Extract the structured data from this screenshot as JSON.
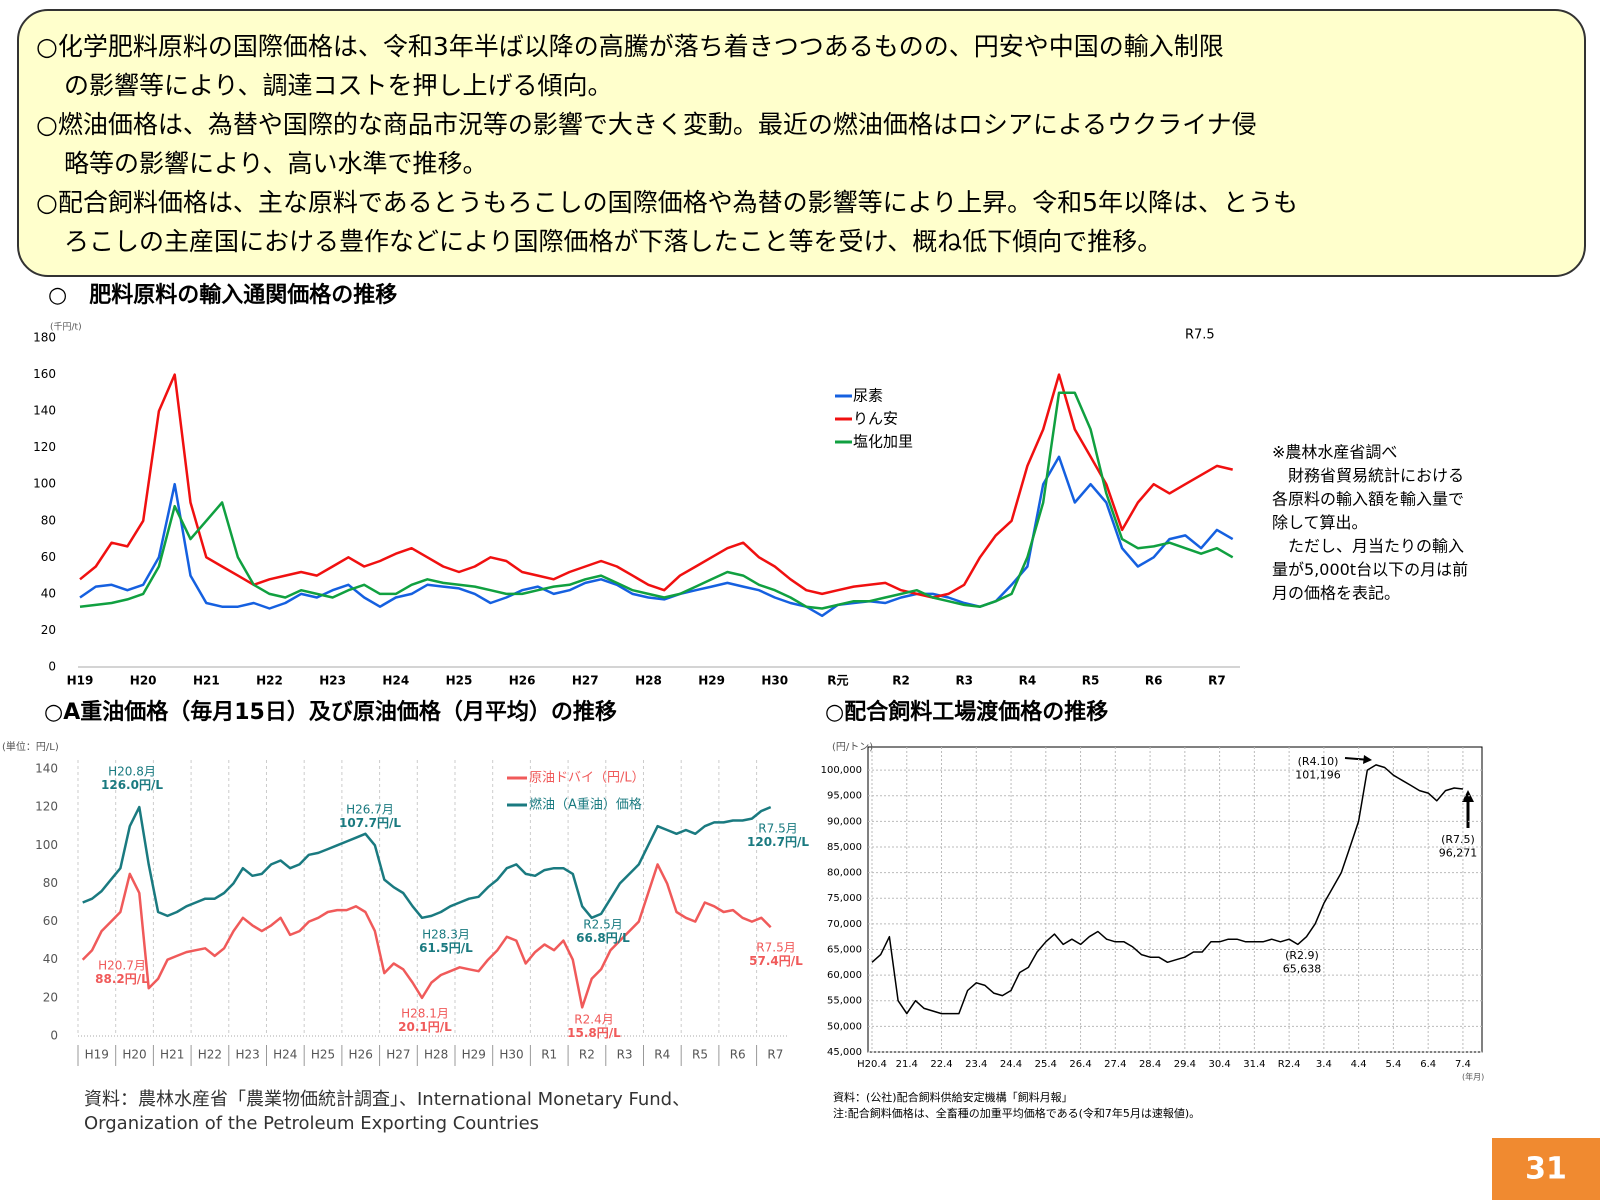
{
  "summary": [
    [
      "○化学肥料原料の国際価格は、令和3年半ば以降の高騰が落ち着きつつあるものの、円安や中国の輸入制限",
      "の影響等により、調達コストを押し上げる傾向。"
    ],
    [
      "○燃油価格は、為替や国際的な商品市況等の影響で大きく変動。最近の燃油価格はロシアによるウクライナ侵",
      "略等の影響により、高い水準で推移。"
    ],
    [
      "○配合飼料価格は、主な原料であるとうもろこしの国際価格や為替の影響等により上昇。令和5年以降は、とうも",
      "ろこしの主産国における豊作などにより国際価格が下落したこと等を受け、概ね低下傾向で推移。"
    ]
  ],
  "page_number": "31",
  "chart_data": [
    {
      "type": "line",
      "title": "○　肥料原料の輸入通関価格の推移",
      "y_unit": "(千円/t)",
      "annotation": "R7.5",
      "note": [
        "※農林水産省調べ",
        "　財務省貿易統計における",
        "各原料の輸入額を輸入量で",
        "除して算出。",
        "　ただし、月当たりの輸入",
        "量が5,000t台以下の月は前",
        "月の価格を表記。"
      ],
      "ylim": [
        0,
        180
      ],
      "yticks": [
        0,
        20,
        40,
        60,
        80,
        100,
        120,
        140,
        160,
        180
      ],
      "grid": false,
      "categories": [
        "H19",
        null,
        null,
        null,
        "H20",
        null,
        null,
        null,
        "H21",
        null,
        null,
        null,
        "H22",
        null,
        null,
        null,
        "H23",
        null,
        null,
        null,
        "H24",
        null,
        null,
        null,
        "H25",
        null,
        null,
        null,
        "H26",
        null,
        null,
        null,
        "H27",
        null,
        null,
        null,
        "H28",
        null,
        null,
        null,
        "H29",
        null,
        null,
        null,
        "H30",
        null,
        null,
        null,
        "R元",
        null,
        null,
        null,
        "R2",
        null,
        null,
        null,
        "R3",
        null,
        null,
        null,
        "R4",
        null,
        null,
        null,
        "R5",
        null,
        null,
        null,
        "R6",
        null,
        null,
        null,
        "R7",
        null
      ],
      "series": [
        {
          "name": "尿素",
          "color": "#1560e0",
          "values": [
            38,
            44,
            45,
            42,
            45,
            60,
            100,
            50,
            35,
            33,
            33,
            35,
            32,
            35,
            40,
            38,
            42,
            45,
            38,
            33,
            38,
            40,
            45,
            44,
            43,
            40,
            35,
            38,
            42,
            44,
            40,
            42,
            46,
            48,
            45,
            40,
            38,
            37,
            40,
            42,
            44,
            46,
            44,
            42,
            38,
            35,
            33,
            28,
            34,
            35,
            36,
            35,
            38,
            40,
            40,
            38,
            35,
            33,
            36,
            45,
            55,
            100,
            115,
            90,
            100,
            90,
            65,
            55,
            60,
            70,
            72,
            65,
            75,
            70
          ]
        },
        {
          "name": "りん安",
          "color": "#f01010",
          "values": [
            48,
            55,
            68,
            66,
            80,
            140,
            160,
            90,
            60,
            55,
            50,
            45,
            48,
            50,
            52,
            50,
            55,
            60,
            55,
            58,
            62,
            65,
            60,
            55,
            52,
            55,
            60,
            58,
            52,
            50,
            48,
            52,
            55,
            58,
            55,
            50,
            45,
            42,
            50,
            55,
            60,
            65,
            68,
            60,
            55,
            48,
            42,
            40,
            42,
            44,
            45,
            46,
            42,
            40,
            38,
            40,
            45,
            60,
            72,
            80,
            110,
            130,
            160,
            130,
            115,
            100,
            75,
            90,
            100,
            95,
            100,
            105,
            110,
            108
          ]
        },
        {
          "name": "塩化加里",
          "color": "#10a040",
          "values": [
            33,
            34,
            35,
            37,
            40,
            55,
            88,
            70,
            80,
            90,
            60,
            45,
            40,
            38,
            42,
            40,
            38,
            42,
            45,
            40,
            40,
            45,
            48,
            46,
            45,
            44,
            42,
            40,
            40,
            42,
            44,
            45,
            48,
            50,
            46,
            42,
            40,
            38,
            40,
            44,
            48,
            52,
            50,
            45,
            42,
            38,
            33,
            32,
            34,
            36,
            36,
            38,
            40,
            42,
            38,
            36,
            34,
            33,
            36,
            40,
            60,
            90,
            150,
            150,
            130,
            95,
            70,
            65,
            66,
            68,
            65,
            62,
            65,
            60
          ]
        }
      ]
    },
    {
      "type": "line",
      "title": "○A重油価格（毎月15日）及び原油価格（月平均）の推移",
      "y_unit": "(単位：円/L)",
      "source": [
        "資料：農林水産省「農業物価統計調査」、International Monetary Fund、",
        "Organization of the Petroleum Exporting Countries"
      ],
      "ylim": [
        0,
        140
      ],
      "yticks": [
        0,
        20,
        40,
        60,
        80,
        100,
        120,
        140
      ],
      "grid": true,
      "categories": [
        "H19",
        null,
        null,
        null,
        "H20",
        null,
        null,
        null,
        "H21",
        null,
        null,
        null,
        "H22",
        null,
        null,
        null,
        "H23",
        null,
        null,
        null,
        "H24",
        null,
        null,
        null,
        "H25",
        null,
        null,
        null,
        "H26",
        null,
        null,
        null,
        "H27",
        null,
        null,
        null,
        "H28",
        null,
        null,
        null,
        "H29",
        null,
        null,
        null,
        "H30",
        null,
        null,
        null,
        "R1",
        null,
        null,
        null,
        "R2",
        null,
        null,
        null,
        "R3",
        null,
        null,
        null,
        "R4",
        null,
        null,
        null,
        "R5",
        null,
        null,
        null,
        "R6",
        null,
        null,
        null,
        "R7",
        null
      ],
      "series": [
        {
          "name": "原油ドバイ（円/L）",
          "color": "#f05a5a",
          "values": [
            40,
            45,
            55,
            60,
            65,
            85,
            75,
            25,
            30,
            40,
            42,
            44,
            45,
            46,
            42,
            46,
            55,
            62,
            58,
            55,
            58,
            62,
            53,
            55,
            60,
            62,
            65,
            66,
            66,
            68,
            65,
            55,
            33,
            38,
            35,
            28,
            20,
            28,
            32,
            34,
            36,
            35,
            34,
            40,
            45,
            52,
            50,
            38,
            44,
            48,
            45,
            50,
            40,
            15,
            30,
            35,
            45,
            50,
            55,
            60,
            75,
            90,
            80,
            65,
            62,
            60,
            70,
            68,
            65,
            66,
            62,
            60,
            62,
            57
          ]
        },
        {
          "name": "燃油（A重油）価格",
          "color": "#1a7a80",
          "values": [
            70,
            72,
            76,
            82,
            88,
            110,
            120,
            90,
            65,
            63,
            65,
            68,
            70,
            72,
            72,
            75,
            80,
            88,
            84,
            85,
            90,
            92,
            88,
            90,
            95,
            96,
            98,
            100,
            102,
            104,
            106,
            100,
            82,
            78,
            75,
            68,
            62,
            63,
            65,
            68,
            70,
            72,
            73,
            78,
            82,
            88,
            90,
            85,
            84,
            87,
            88,
            88,
            85,
            68,
            62,
            64,
            72,
            80,
            85,
            90,
            100,
            110,
            108,
            106,
            108,
            106,
            110,
            112,
            112,
            113,
            113,
            114,
            118,
            120
          ]
        }
      ],
      "annotations": [
        {
          "lines": [
            "H20.8月",
            "126.0円/L"
          ],
          "series": 1
        },
        {
          "lines": [
            "H20.7月",
            "88.2円/L"
          ],
          "series": 0
        },
        {
          "lines": [
            "H26.7月",
            "107.7円/L"
          ],
          "series": 1
        },
        {
          "lines": [
            "H28.3月",
            "61.5円/L"
          ],
          "series": 1
        },
        {
          "lines": [
            "H28.1月",
            "20.1円/L"
          ],
          "series": 0
        },
        {
          "lines": [
            "R2.5月",
            "66.8円/L"
          ],
          "series": 1
        },
        {
          "lines": [
            "R2.4月",
            "15.8円/L"
          ],
          "series": 0
        },
        {
          "lines": [
            "R7.5月",
            "120.7円/L"
          ],
          "series": 1
        },
        {
          "lines": [
            "R7.5月",
            "57.4円/L"
          ],
          "series": 0
        }
      ]
    },
    {
      "type": "line",
      "title": "○配合飼料工場渡価格の推移",
      "y_unit": "(円/トン)",
      "x_unit": "(年月)",
      "source": [
        "資料：(公社)配合飼料供給安定機構「飼料月報」",
        "注:配合飼料価格は、全畜種の加重平均価格である(令和7年5月は速報値)。"
      ],
      "ylim": [
        45000,
        104500
      ],
      "yticks": [
        {
          "value": 45000,
          "label": "45,000"
        },
        {
          "value": 50000,
          "label": "50,000"
        },
        {
          "value": 55000,
          "label": "55,000"
        },
        {
          "value": 60000,
          "label": "60,000"
        },
        {
          "value": 65000,
          "label": "65,000"
        },
        {
          "value": 70000,
          "label": "70,000"
        },
        {
          "value": 75000,
          "label": "75,000"
        },
        {
          "value": 80000,
          "label": "80,000"
        },
        {
          "value": 85000,
          "label": "85,000"
        },
        {
          "value": 90000,
          "label": "90,000"
        },
        {
          "value": 95000,
          "label": "95,000"
        },
        {
          "value": 100000,
          "label": "100,000"
        }
      ],
      "grid": true,
      "categories": [
        "H20.4",
        null,
        null,
        null,
        "21.4",
        null,
        null,
        null,
        "22.4",
        null,
        null,
        null,
        "23.4",
        null,
        null,
        null,
        "24.4",
        null,
        null,
        null,
        "25.4",
        null,
        null,
        null,
        "26.4",
        null,
        null,
        null,
        "27.4",
        null,
        null,
        null,
        "28.4",
        null,
        null,
        null,
        "29.4",
        null,
        null,
        null,
        "30.4",
        null,
        null,
        null,
        "31.4",
        null,
        null,
        null,
        "R2.4",
        null,
        null,
        null,
        "3.4",
        null,
        null,
        null,
        "4.4",
        null,
        null,
        null,
        "5.4",
        null,
        null,
        null,
        "6.4",
        null,
        null,
        null,
        "7.4"
      ],
      "series": [
        {
          "color": "#000000",
          "values": [
            62500,
            64000,
            67500,
            55000,
            52500,
            55000,
            53500,
            53000,
            52500,
            52500,
            52500,
            57000,
            58500,
            58000,
            56500,
            56000,
            57000,
            60500,
            61500,
            64500,
            66500,
            68000,
            66000,
            67000,
            66000,
            67500,
            68500,
            67000,
            66500,
            66500,
            65500,
            64000,
            63500,
            63500,
            62500,
            63000,
            63500,
            64500,
            64500,
            66500,
            66500,
            67000,
            67000,
            66500,
            66500,
            66500,
            67000,
            66500,
            67000,
            66000,
            67500,
            70000,
            74000,
            77000,
            80000,
            85000,
            90000,
            100000,
            101000,
            100500,
            99000,
            98000,
            97000,
            96000,
            95500,
            94000,
            96000,
            96500,
            96300
          ]
        }
      ],
      "annotations": [
        {
          "lines": [
            "(R4.10)",
            "101,196"
          ]
        },
        {
          "lines": [
            "(R2.9)",
            "65,638"
          ]
        },
        {
          "lines": [
            "(R7.5)",
            "96,271"
          ]
        }
      ]
    }
  ]
}
